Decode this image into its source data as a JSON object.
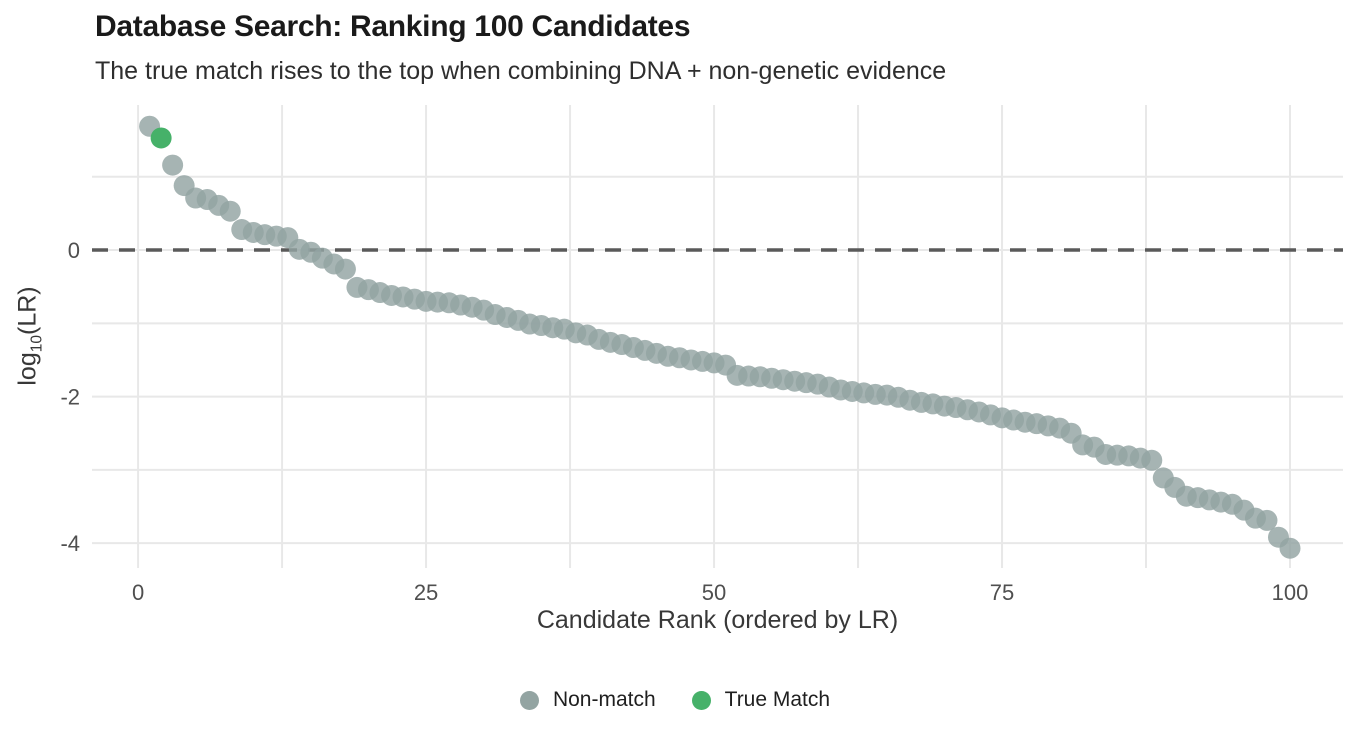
{
  "header": {
    "title": "Database Search: Ranking 100 Candidates",
    "subtitle": "The true match rises to the top when combining DNA + non-genetic evidence"
  },
  "chart_data": {
    "type": "scatter",
    "title": "Database Search: Ranking 100 Candidates",
    "subtitle": "The true match rises to the top when combining DNA + non-genetic evidence",
    "xlabel": "Candidate Rank (ordered by LR)",
    "ylabel": "log10(LR)",
    "ylabel_parts": {
      "pre": "log",
      "sub": "10",
      "post": "(LR)"
    },
    "rank_start": 1,
    "values": [
      1.69,
      1.53,
      1.16,
      0.88,
      0.71,
      0.69,
      0.61,
      0.53,
      0.28,
      0.24,
      0.21,
      0.19,
      0.17,
      0.01,
      -0.03,
      -0.11,
      -0.19,
      -0.26,
      -0.51,
      -0.54,
      -0.58,
      -0.62,
      -0.64,
      -0.67,
      -0.7,
      -0.71,
      -0.72,
      -0.75,
      -0.78,
      -0.82,
      -0.88,
      -0.92,
      -0.96,
      -1.01,
      -1.03,
      -1.06,
      -1.08,
      -1.13,
      -1.16,
      -1.22,
      -1.26,
      -1.29,
      -1.33,
      -1.37,
      -1.41,
      -1.45,
      -1.47,
      -1.5,
      -1.52,
      -1.54,
      -1.57,
      -1.71,
      -1.72,
      -1.73,
      -1.75,
      -1.77,
      -1.79,
      -1.81,
      -1.83,
      -1.87,
      -1.91,
      -1.93,
      -1.95,
      -1.97,
      -1.98,
      -2.01,
      -2.05,
      -2.08,
      -2.1,
      -2.13,
      -2.15,
      -2.18,
      -2.21,
      -2.25,
      -2.29,
      -2.32,
      -2.35,
      -2.37,
      -2.4,
      -2.43,
      -2.5,
      -2.66,
      -2.69,
      -2.79,
      -2.8,
      -2.81,
      -2.84,
      -2.87,
      -3.11,
      -3.24,
      -3.36,
      -3.38,
      -3.41,
      -3.44,
      -3.47,
      -3.55,
      -3.66,
      -3.69,
      -3.92,
      -4.07
    ],
    "true_match_rank": 2,
    "series": [
      {
        "name": "Non-match",
        "color": "#93a4a2",
        "opacity": 0.82
      },
      {
        "name": "True Match",
        "color": "#46b169",
        "opacity": 1.0
      }
    ],
    "x_ticks": [
      0,
      25,
      50,
      75,
      100
    ],
    "x_minor_gridlines": [
      12.5,
      37.5,
      62.5,
      87.5
    ],
    "y_ticks": [
      0,
      -2,
      -4
    ],
    "y_gridlines": [
      1,
      0,
      -1,
      -2,
      -3,
      -4
    ],
    "xlim": [
      -4,
      104.6
    ],
    "ylim": [
      -4.34,
      1.98
    ],
    "grid": true,
    "grid_color": "#e8e8e8",
    "reference_line": {
      "y": 0,
      "style": "dashed",
      "color": "#5a5a5a"
    },
    "legend_position": "bottom",
    "point_radius": 10.5
  },
  "colors": {
    "background": "#ffffff",
    "title": "#1a1a1a",
    "subtitle": "#2e2e2e",
    "axis_text": "#4f4f4f",
    "axis_title": "#383838"
  }
}
